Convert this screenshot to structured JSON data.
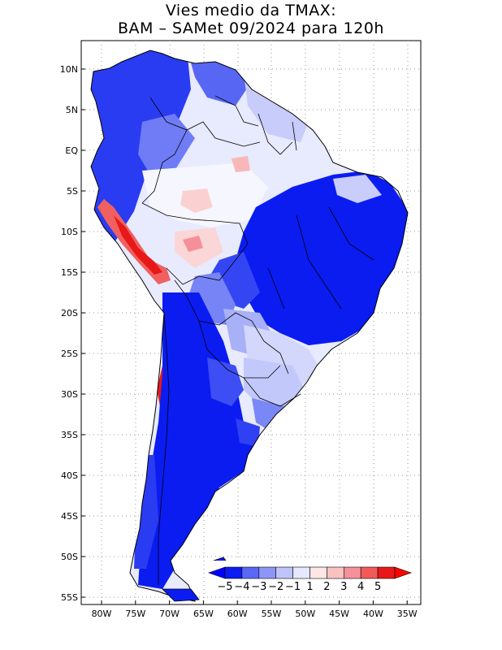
{
  "title": {
    "line1": "Vies medio da TMAX:",
    "line2": "BAM – SAMet 09/2024  para 120h"
  },
  "map": {
    "region": "South America",
    "variable": "TMAX bias",
    "lat_labels": [
      "10N",
      "5N",
      "EQ",
      "5S",
      "10S",
      "15S",
      "20S",
      "25S",
      "30S",
      "35S",
      "40S",
      "45S",
      "50S",
      "55S"
    ],
    "lon_labels": [
      "80W",
      "75W",
      "70W",
      "65W",
      "60W",
      "55W",
      "50W",
      "45W",
      "40W",
      "35W"
    ]
  },
  "colorbar": {
    "labels": [
      "−5",
      "−4",
      "−3",
      "−2",
      "−1",
      "1",
      "2",
      "3",
      "4",
      "5"
    ],
    "colors": [
      "#0b1df0",
      "#5a68f5",
      "#8d96f7",
      "#bfc4fa",
      "#e6e8fd",
      "#fde6e6",
      "#fbc2c2",
      "#f6909a",
      "#f25a5a",
      "#e81818"
    ],
    "low_arrow_color": "#0000ff",
    "high_arrow_color": "#ff0000"
  }
}
